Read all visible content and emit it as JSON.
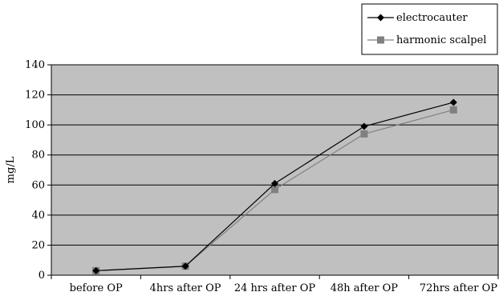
{
  "chart_data": {
    "type": "line",
    "title": "",
    "xlabel": "",
    "ylabel": "mg/L",
    "categories": [
      "before OP",
      "4hrs after OP",
      "24 hrs after OP",
      "48h after OP",
      "72hrs after OP"
    ],
    "ylim": [
      0,
      140
    ],
    "yticks": [
      0,
      20,
      40,
      60,
      80,
      100,
      120,
      140
    ],
    "grid": true,
    "legend_position": "top-right",
    "plot_background": "#c0c0c0",
    "series": [
      {
        "name": "electrocauter",
        "values": [
          3,
          6,
          61,
          99,
          115
        ],
        "color": "#000000",
        "marker": "diamond"
      },
      {
        "name": "harmonic scalpel",
        "values": [
          3,
          6,
          57,
          94,
          110
        ],
        "color": "#808080",
        "marker": "square"
      }
    ]
  }
}
